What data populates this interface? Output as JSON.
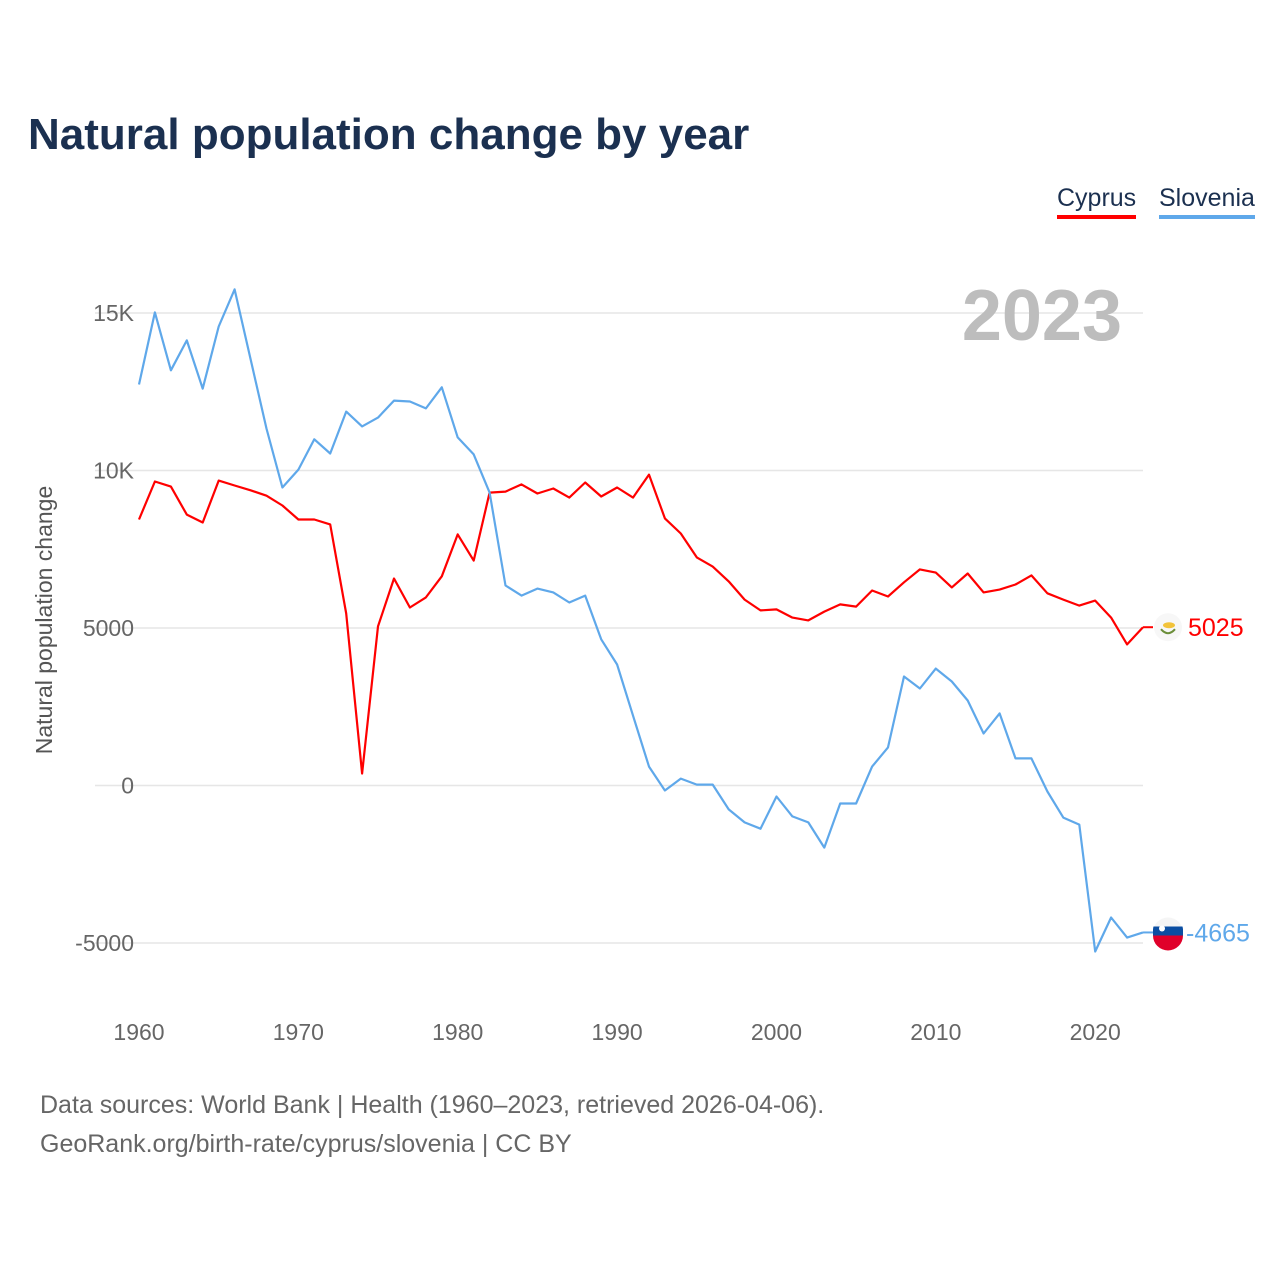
{
  "chart_data": {
    "type": "line",
    "title": "Natural population change by year",
    "ylabel": "Natural population change",
    "xlabel": "",
    "year_label": "2023",
    "xlim": [
      1960,
      2023
    ],
    "ylim": [
      -5000,
      15000
    ],
    "x_ticks": [
      "1960",
      "1970",
      "1980",
      "1990",
      "2000",
      "2010",
      "2020"
    ],
    "y_ticks": [
      {
        "v": 15000,
        "label": "15K"
      },
      {
        "v": 10000,
        "label": "10K"
      },
      {
        "v": 5000,
        "label": "5000"
      },
      {
        "v": 0,
        "label": "0"
      },
      {
        "v": -5000,
        "label": "-5000"
      }
    ],
    "grid": true,
    "legend_position": "top-right",
    "x": [
      1960,
      1961,
      1962,
      1963,
      1964,
      1965,
      1966,
      1967,
      1968,
      1969,
      1970,
      1971,
      1972,
      1973,
      1974,
      1975,
      1976,
      1977,
      1978,
      1979,
      1980,
      1981,
      1982,
      1983,
      1984,
      1985,
      1986,
      1987,
      1988,
      1989,
      1990,
      1991,
      1992,
      1993,
      1994,
      1995,
      1996,
      1997,
      1998,
      1999,
      2000,
      2001,
      2002,
      2003,
      2004,
      2005,
      2006,
      2007,
      2008,
      2009,
      2010,
      2011,
      2012,
      2013,
      2014,
      2015,
      2016,
      2017,
      2018,
      2019,
      2020,
      2021,
      2022,
      2023
    ],
    "series": [
      {
        "name": "Cyprus",
        "color": "#ff0000",
        "last_label": "5025",
        "values": [
          8445,
          9650,
          9490,
          8600,
          8350,
          9680,
          9525,
          9370,
          9200,
          8890,
          8445,
          8445,
          8290,
          5460,
          380,
          5050,
          6570,
          5650,
          5970,
          6640,
          7970,
          7140,
          9300,
          9330,
          9560,
          9270,
          9430,
          9140,
          9620,
          9175,
          9460,
          9140,
          9870,
          8480,
          8000,
          7240,
          6950,
          6480,
          5900,
          5560,
          5590,
          5330,
          5240,
          5520,
          5750,
          5680,
          6190,
          6000,
          6450,
          6860,
          6760,
          6290,
          6730,
          6130,
          6220,
          6380,
          6670,
          6100,
          5900,
          5710,
          5870,
          5330,
          4480,
          5025
        ]
      },
      {
        "name": "Slovenia",
        "color": "#5fa8ea",
        "last_label": "-4665",
        "values": [
          12730,
          15020,
          13180,
          14130,
          12600,
          14570,
          15750,
          13530,
          11330,
          9460,
          10030,
          10990,
          10540,
          11870,
          11400,
          11680,
          12220,
          12190,
          11970,
          12640,
          11050,
          10510,
          9300,
          6350,
          6030,
          6250,
          6130,
          5810,
          6030,
          4640,
          3840,
          2220,
          600,
          -160,
          220,
          30,
          30,
          -760,
          -1170,
          -1370,
          -350,
          -980,
          -1170,
          -1970,
          -570,
          -570,
          600,
          1210,
          3460,
          3080,
          3710,
          3300,
          2700,
          1650,
          2290,
          860,
          860,
          -190,
          -1020,
          -1240,
          -5270,
          -4190,
          -4830,
          -4665
        ]
      }
    ]
  },
  "footer": {
    "line1": "Data sources: World Bank | Health (1960–2023, retrieved 2026-04-06).",
    "line2": "GeoRank.org/birth-rate/cyprus/slovenia | CC BY"
  }
}
